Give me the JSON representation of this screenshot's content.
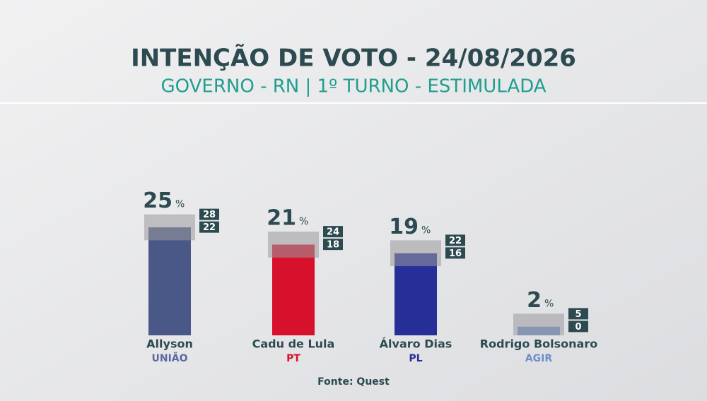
{
  "chart_data": {
    "type": "bar",
    "title": "INTENÇÃO DE VOTO - 24/08/2026",
    "subtitle": "GOVERNO - RN | 1º TURNO - ESTIMULADA",
    "categories": [
      "Allyson",
      "Cadu de Lula",
      "Álvaro Dias",
      "Rodrigo Bolsonaro"
    ],
    "parties": [
      "UNIÃO",
      "PT",
      "PL",
      "AGIR"
    ],
    "values": [
      25,
      21,
      19,
      2
    ],
    "unit": "%",
    "upper": [
      28,
      24,
      22,
      5
    ],
    "lower": [
      22,
      18,
      16,
      0
    ],
    "colors": [
      "#4a5888",
      "#d7112c",
      "#262f98",
      "#6c8ec9"
    ],
    "party_colors": [
      "#5a6aa0",
      "#d7112c",
      "#262f98",
      "#6c8ec9"
    ],
    "source": "Fonte: Quest"
  }
}
